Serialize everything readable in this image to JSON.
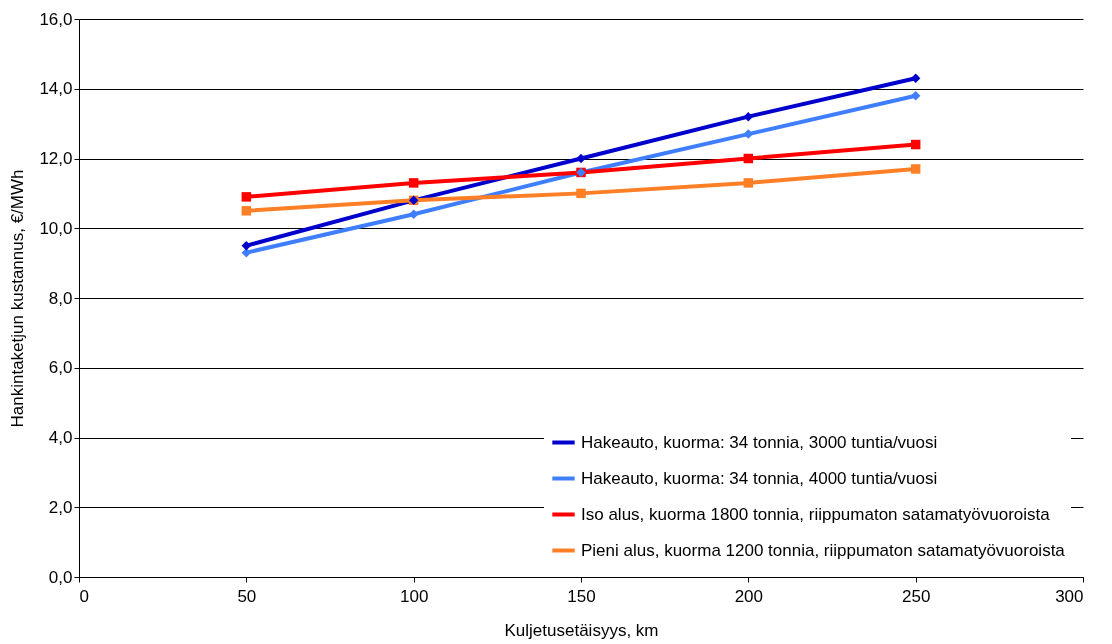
{
  "chart_data": {
    "type": "line",
    "xlabel": "Kuljetusetäisyys, km",
    "ylabel": "Hankintaketjun kustannus, €/MWh",
    "x": [
      50,
      100,
      150,
      200,
      250
    ],
    "series": [
      {
        "name": "Hakeauto, kuorma: 34 tonnia, 3000 tuntia/vuosi",
        "color": "#0000cc",
        "marker": "diamond",
        "values": [
          9.5,
          10.8,
          12.0,
          13.2,
          14.3
        ]
      },
      {
        "name": "Hakeauto, kuorma: 34 tonnia, 4000 tuntia/vuosi",
        "color": "#3f7fff",
        "marker": "diamond",
        "values": [
          9.3,
          10.4,
          11.6,
          12.7,
          13.8
        ]
      },
      {
        "name": "Iso alus, kuorma 1800 tonnia, riippumaton satamatyövuoroista",
        "color": "#ff0000",
        "marker": "square",
        "values": [
          10.9,
          11.3,
          11.6,
          12.0,
          12.4
        ]
      },
      {
        "name": "Pieni alus, kuorma 1200 tonnia, riippumaton satamatyövuoroista",
        "color": "#ff7f27",
        "marker": "square",
        "values": [
          10.5,
          10.8,
          11.0,
          11.3,
          11.7
        ]
      }
    ],
    "xlim": [
      0,
      300
    ],
    "xticks": [
      0,
      50,
      100,
      150,
      200,
      250,
      300
    ],
    "ylim": [
      0,
      16
    ],
    "yticks": [
      {
        "value": 0,
        "label": "0,0"
      },
      {
        "value": 2,
        "label": "2,0"
      },
      {
        "value": 4,
        "label": "4,0"
      },
      {
        "value": 6,
        "label": "6,0"
      },
      {
        "value": 8,
        "label": "8,0"
      },
      {
        "value": 10,
        "label": "10,0"
      },
      {
        "value": 12,
        "label": "12,0"
      },
      {
        "value": 14,
        "label": "14,0"
      },
      {
        "value": 16,
        "label": "16,0"
      }
    ],
    "grid": "y",
    "legend": "bottom right",
    "line_style": "solid"
  }
}
